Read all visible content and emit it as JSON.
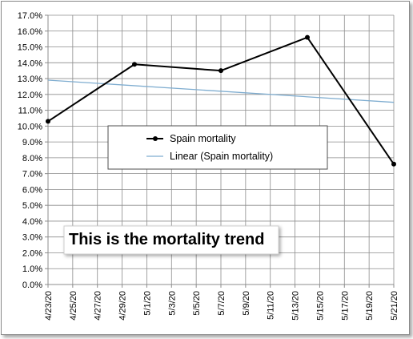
{
  "chart_data": {
    "type": "line",
    "title": "",
    "xlabel": "",
    "ylabel": "",
    "ylim": [
      0,
      17
    ],
    "y_ticks": [
      "0.0%",
      "1.0%",
      "2.0%",
      "3.0%",
      "4.0%",
      "5.0%",
      "6.0%",
      "7.0%",
      "8.0%",
      "9.0%",
      "10.0%",
      "11.0%",
      "12.0%",
      "13.0%",
      "14.0%",
      "15.0%",
      "16.0%",
      "17.0%"
    ],
    "x_ticks": [
      "4/23/20",
      "4/25/20",
      "4/27/20",
      "4/29/20",
      "5/1/20",
      "5/3/20",
      "5/5/20",
      "5/7/20",
      "5/9/20",
      "5/11/20",
      "5/13/20",
      "5/15/20",
      "5/17/20",
      "5/19/20",
      "5/21/20"
    ],
    "x_range": [
      "4/23/20",
      "5/21/20"
    ],
    "grid": true,
    "legend_position": "center",
    "series": [
      {
        "name": "Spain mortality",
        "color": "#000000",
        "points": [
          {
            "x": "4/23/20",
            "y": 10.3
          },
          {
            "x": "4/30/20",
            "y": 13.9
          },
          {
            "x": "5/7/20",
            "y": 13.5
          },
          {
            "x": "5/14/20",
            "y": 15.6
          },
          {
            "x": "5/21/20",
            "y": 7.6
          }
        ]
      },
      {
        "name": "Linear (Spain mortality)",
        "color": "#7fadd0",
        "points": [
          {
            "x": "4/23/20",
            "y": 12.9
          },
          {
            "x": "5/21/20",
            "y": 11.5
          }
        ]
      }
    ],
    "annotation": "This is the mortality trend"
  }
}
